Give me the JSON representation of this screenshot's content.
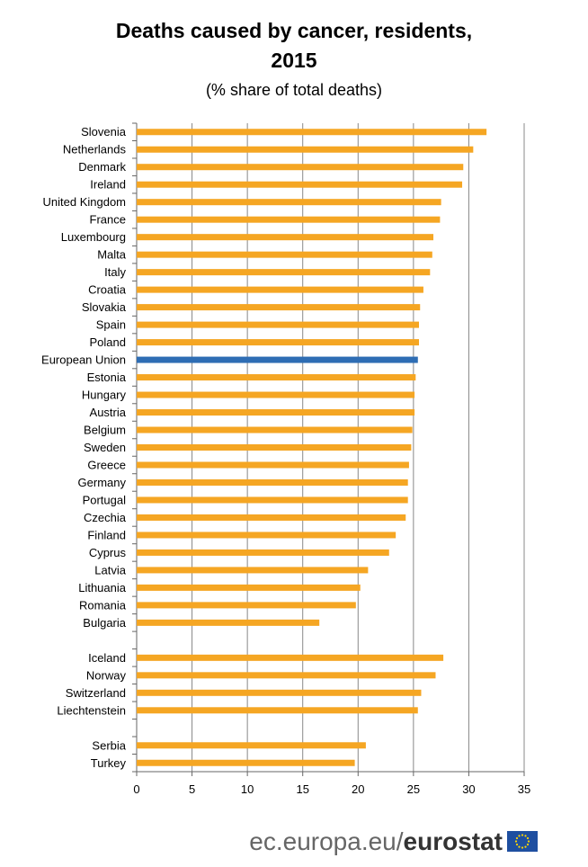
{
  "chart_data": {
    "type": "bar",
    "orientation": "horizontal",
    "title_line1": "Deaths caused by cancer, residents,",
    "title_line2": "2015",
    "subtitle": "(% share of total deaths)",
    "xlim": [
      0,
      35
    ],
    "xticks": [
      "0",
      "5",
      "10",
      "15",
      "20",
      "25",
      "30",
      "35"
    ],
    "grid": "vertical",
    "colors": {
      "default": "#f5a623",
      "highlight": "#2e6db4",
      "grid": "#888888"
    },
    "groups": [
      {
        "categories": [
          "Slovenia",
          "Netherlands",
          "Denmark",
          "Ireland",
          "United Kingdom",
          "France",
          "Luxembourg",
          "Malta",
          "Italy",
          "Croatia",
          "Slovakia",
          "Spain",
          "Poland",
          "European Union",
          "Estonia",
          "Hungary",
          "Austria",
          "Belgium",
          "Sweden",
          "Greece",
          "Germany",
          "Portugal",
          "Czechia",
          "Finland",
          "Cyprus",
          "Latvia",
          "Lithuania",
          "Romania",
          "Bulgaria"
        ],
        "values": [
          31.6,
          30.4,
          29.5,
          29.4,
          27.5,
          27.4,
          26.8,
          26.7,
          26.5,
          25.9,
          25.6,
          25.5,
          25.5,
          25.4,
          25.2,
          25.1,
          25.1,
          24.9,
          24.8,
          24.6,
          24.5,
          24.5,
          24.3,
          23.4,
          22.8,
          20.9,
          20.2,
          19.8,
          16.5
        ],
        "highlight": [
          "European Union"
        ]
      },
      {
        "categories": [
          "Iceland",
          "Norway",
          "Switzerland",
          "Liechtenstein"
        ],
        "values": [
          27.7,
          27.0,
          25.7,
          25.4
        ],
        "highlight": []
      },
      {
        "categories": [
          "Serbia",
          "Turkey"
        ],
        "values": [
          20.7,
          19.7
        ],
        "highlight": []
      }
    ]
  },
  "footer": {
    "domain": "ec.europa.eu/",
    "brand": "eurostat"
  }
}
